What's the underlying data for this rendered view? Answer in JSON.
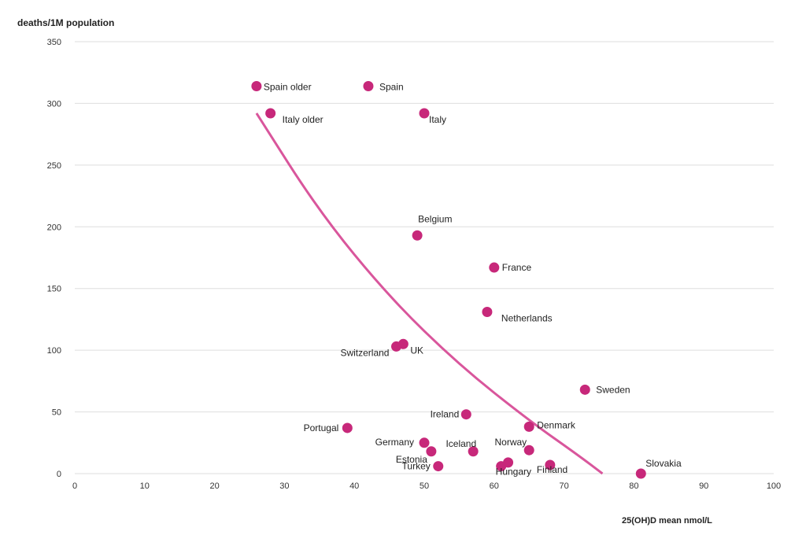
{
  "chart_data": {
    "type": "scatter",
    "ylabel": "deaths/1M population",
    "xlabel": "25(OH)D mean nmol/L",
    "xlim": [
      0,
      100
    ],
    "ylim": [
      0,
      350
    ],
    "xticks": [
      0,
      10,
      20,
      30,
      40,
      50,
      60,
      70,
      80,
      90,
      100
    ],
    "yticks": [
      0,
      50,
      100,
      150,
      200,
      250,
      300,
      350
    ],
    "grid": "horizontal",
    "point_color": "#c7287a",
    "trend_color": "#d9569c",
    "points": [
      {
        "label": "Spain older",
        "x": 26,
        "y": 314
      },
      {
        "label": "Spain",
        "x": 42,
        "y": 314
      },
      {
        "label": "Italy older",
        "x": 28,
        "y": 292
      },
      {
        "label": "Italy",
        "x": 50,
        "y": 292
      },
      {
        "label": "Belgium",
        "x": 49,
        "y": 193
      },
      {
        "label": "France",
        "x": 60,
        "y": 167
      },
      {
        "label": "Netherlands",
        "x": 59,
        "y": 131
      },
      {
        "label": "Switzerland",
        "x": 46,
        "y": 103
      },
      {
        "label": "UK",
        "x": 47,
        "y": 105
      },
      {
        "label": "Sweden",
        "x": 73,
        "y": 68
      },
      {
        "label": "Ireland",
        "x": 56,
        "y": 48
      },
      {
        "label": "Denmark",
        "x": 65,
        "y": 38
      },
      {
        "label": "Portugal",
        "x": 39,
        "y": 37
      },
      {
        "label": "Germany",
        "x": 50,
        "y": 25
      },
      {
        "label": "Estonia",
        "x": 51,
        "y": 18
      },
      {
        "label": "Iceland",
        "x": 57,
        "y": 18
      },
      {
        "label": "Norway",
        "x": 65,
        "y": 19
      },
      {
        "label": "Turkey",
        "x": 52,
        "y": 6
      },
      {
        "label": "Hungary",
        "x": 61,
        "y": 6
      },
      {
        "label": "",
        "x": 62,
        "y": 9
      },
      {
        "label": "Finland",
        "x": 68,
        "y": 7
      },
      {
        "label": "Slovakia",
        "x": 81,
        "y": 0
      }
    ],
    "trendline": [
      {
        "x": 26,
        "y": 292
      },
      {
        "x": 35,
        "y": 212
      },
      {
        "x": 45,
        "y": 143
      },
      {
        "x": 55,
        "y": 88
      },
      {
        "x": 65,
        "y": 43
      },
      {
        "x": 72,
        "y": 15
      },
      {
        "x": 75.5,
        "y": 0
      }
    ]
  }
}
